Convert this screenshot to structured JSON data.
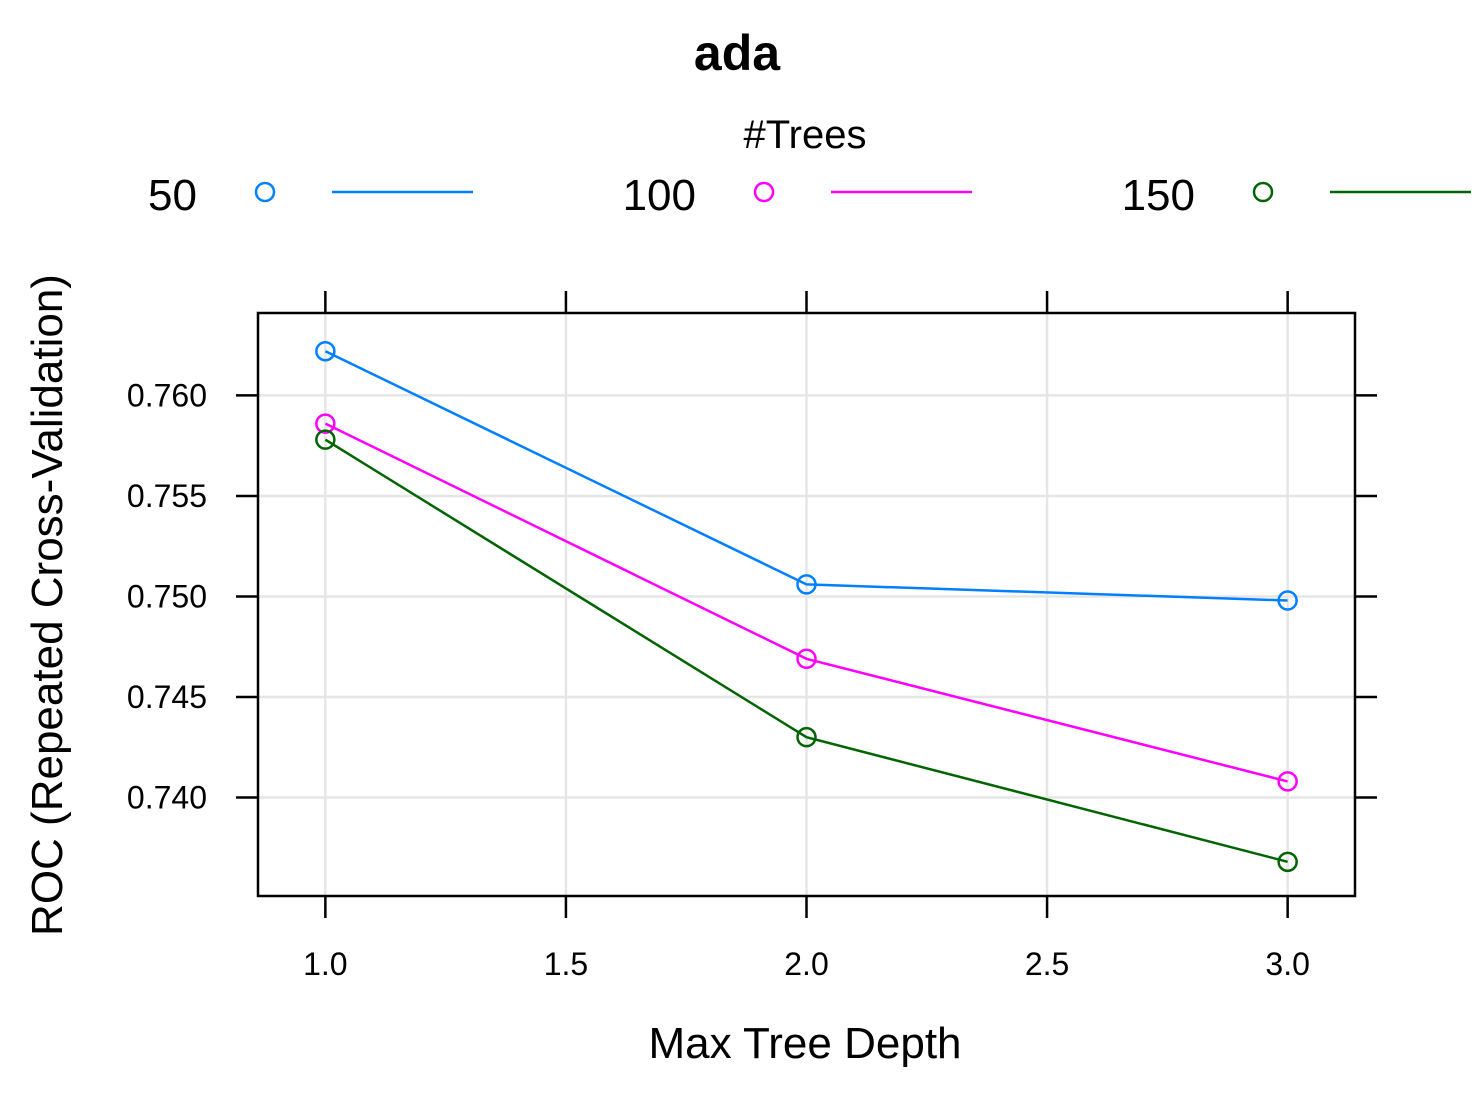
{
  "chart_data": {
    "type": "line",
    "title": "ada",
    "xlabel": "Max Tree Depth",
    "ylabel": "ROC (Repeated Cross-Validation)",
    "legend_title": "#Trees",
    "legend_position": "top",
    "grid": true,
    "xlim": [
      0.86,
      3.14
    ],
    "ylim": [
      0.7351,
      0.7641
    ],
    "x_ticks": [
      1.0,
      1.5,
      2.0,
      2.5,
      3.0
    ],
    "x_tick_labels": [
      "1.0",
      "1.5",
      "2.0",
      "2.5",
      "3.0"
    ],
    "y_ticks": [
      0.74,
      0.745,
      0.75,
      0.755,
      0.76
    ],
    "y_tick_labels": [
      "0.740",
      "0.745",
      "0.750",
      "0.755",
      "0.760"
    ],
    "x": [
      1,
      2,
      3
    ],
    "series": [
      {
        "name": "50",
        "color": "#0080ff",
        "values": [
          0.7622,
          0.7506,
          0.7498
        ]
      },
      {
        "name": "100",
        "color": "#ff00ff",
        "values": [
          0.7586,
          0.7469,
          0.7408
        ]
      },
      {
        "name": "150",
        "color": "#006400",
        "values": [
          0.7578,
          0.743,
          0.7368
        ]
      }
    ]
  }
}
